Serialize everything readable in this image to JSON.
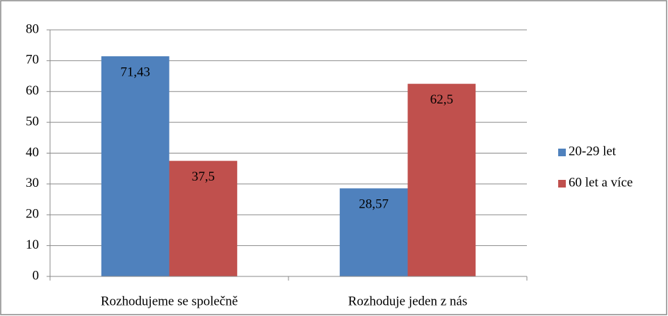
{
  "chart_data": {
    "type": "bar",
    "categories": [
      "Rozhodujeme se společně",
      "Rozhoduje jeden z nás"
    ],
    "series": [
      {
        "name": "20-29 let",
        "color": "#4f81bd",
        "values": [
          71.43,
          28.57
        ],
        "value_labels": [
          "71,43",
          "28,57"
        ]
      },
      {
        "name": "60 let a více",
        "color": "#c0504d",
        "values": [
          37.5,
          62.5
        ],
        "value_labels": [
          "37,5",
          "62,5"
        ]
      }
    ],
    "ylim": [
      0,
      80
    ],
    "yticks": [
      0,
      10,
      20,
      30,
      40,
      50,
      60,
      70,
      80
    ],
    "grid": true,
    "legend": "right"
  }
}
